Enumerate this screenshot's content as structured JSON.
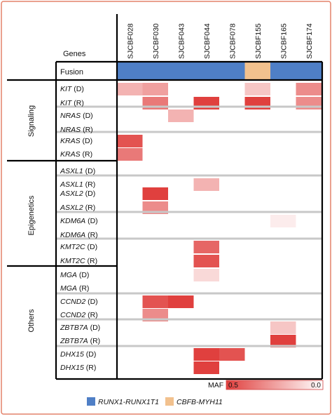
{
  "colors": {
    "runx1": "#4f7fc6",
    "cbfb": "#f2c18e",
    "maf_high": "#e0403e",
    "maf_low": "#ffffff",
    "separator": "#c8c8c8",
    "border": "#e4826a"
  },
  "header": {
    "genes_label": "Genes",
    "fusion_label": "Fusion"
  },
  "samples": [
    "SJCBF028",
    "SJCBF030",
    "SJCBF043",
    "SJCBF044",
    "SJCBF078",
    "SJCBF155",
    "SJCBF165",
    "SJCBF174"
  ],
  "fusion": [
    "runx1",
    "runx1",
    "runx1",
    "runx1",
    "runx1",
    "cbfb",
    "runx1",
    "runx1"
  ],
  "groups": [
    {
      "name": "Signaling",
      "rows": [
        0,
        5
      ]
    },
    {
      "name": "Epigenetics",
      "rows": [
        6,
        13
      ]
    },
    {
      "name": "Others",
      "rows": [
        14,
        21
      ]
    }
  ],
  "rows": [
    {
      "gene": "KIT",
      "suffix": " (D)",
      "maf": [
        0.2,
        0.25,
        0,
        0,
        0,
        0.15,
        0,
        0.3
      ]
    },
    {
      "gene": "KIT",
      "suffix": " (R)",
      "maf": [
        0,
        0.35,
        0,
        0.55,
        0,
        0.55,
        0,
        0.3
      ]
    },
    {
      "gene": "NRAS",
      "suffix": " (D)",
      "maf": [
        0,
        0,
        0.2,
        0,
        0,
        0,
        0,
        0
      ]
    },
    {
      "gene": "NRAS",
      "suffix": " (R)",
      "maf": [
        0,
        0,
        0,
        0,
        0,
        0,
        0,
        0
      ]
    },
    {
      "gene": "KRAS",
      "suffix": " (D)",
      "maf": [
        0.45,
        0,
        0,
        0,
        0,
        0,
        0,
        0
      ]
    },
    {
      "gene": "KRAS",
      "suffix": " (R)",
      "maf": [
        0.35,
        0,
        0,
        0,
        0,
        0,
        0,
        0
      ]
    },
    {
      "gene": "ASXL1",
      "suffix": " (D)",
      "maf": [
        0,
        0,
        0,
        0,
        0,
        0,
        0,
        0
      ]
    },
    {
      "gene": "ASXL1",
      "suffix": " (R)",
      "maf": [
        0,
        0,
        0,
        0.2,
        0,
        0,
        0,
        0
      ]
    },
    {
      "gene": "ASXL2",
      "suffix": " (D)",
      "maf": [
        0,
        0.6,
        0,
        0,
        0,
        0,
        0,
        0
      ]
    },
    {
      "gene": "ASXL2",
      "suffix": " (R)",
      "maf": [
        0,
        0.3,
        0,
        0,
        0,
        0,
        0,
        0
      ]
    },
    {
      "gene": "KDM6A",
      "suffix": " (D)",
      "maf": [
        0,
        0,
        0,
        0,
        0,
        0,
        0.05,
        0
      ]
    },
    {
      "gene": "KDM6A",
      "suffix": " (R)",
      "maf": [
        0,
        0,
        0,
        0,
        0,
        0,
        0,
        0
      ]
    },
    {
      "gene": "KMT2C",
      "suffix": " (D)",
      "maf": [
        0,
        0,
        0,
        0.4,
        0,
        0,
        0,
        0
      ]
    },
    {
      "gene": "KMT2C",
      "suffix": " (R)",
      "maf": [
        0,
        0,
        0,
        0.45,
        0,
        0,
        0,
        0
      ]
    },
    {
      "gene": "MGA",
      "suffix": " (D)",
      "maf": [
        0,
        0,
        0,
        0.1,
        0,
        0,
        0,
        0
      ]
    },
    {
      "gene": "MGA",
      "suffix": " (R)",
      "maf": [
        0,
        0,
        0,
        0,
        0,
        0,
        0,
        0
      ]
    },
    {
      "gene": "CCND2",
      "suffix": " (D)",
      "maf": [
        0,
        0.45,
        0.5,
        0,
        0,
        0,
        0,
        0
      ]
    },
    {
      "gene": "CCND2",
      "suffix": " (R)",
      "maf": [
        0,
        0.3,
        0,
        0,
        0,
        0,
        0,
        0
      ]
    },
    {
      "gene": "ZBTB7A",
      "suffix": " (D)",
      "maf": [
        0,
        0,
        0,
        0,
        0,
        0,
        0.15,
        0
      ]
    },
    {
      "gene": "ZBTB7A",
      "suffix": " (R)",
      "maf": [
        0,
        0,
        0,
        0,
        0,
        0,
        0.7,
        0
      ]
    },
    {
      "gene": "DHX15",
      "suffix": " (D)",
      "maf": [
        0,
        0,
        0,
        0.55,
        0.45,
        0,
        0,
        0
      ]
    },
    {
      "gene": "DHX15",
      "suffix": " (R)",
      "maf": [
        0,
        0,
        0,
        0.55,
        0,
        0,
        0,
        0
      ]
    }
  ],
  "maf_scale": {
    "label": "MAF",
    "high_label": "0.5",
    "low_label": "0.0"
  },
  "legend": [
    {
      "color_key": "runx1",
      "label": "RUNX1-RUNX1T1"
    },
    {
      "color_key": "cbfb",
      "label": "CBFB-MYH11"
    }
  ]
}
